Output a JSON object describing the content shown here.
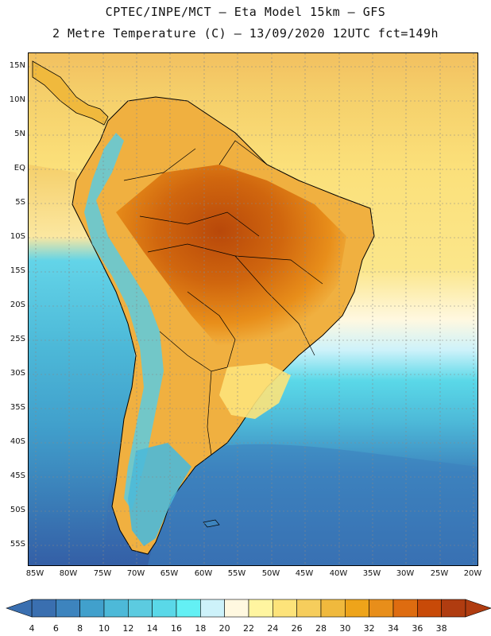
{
  "title": {
    "line1": "CPTEC/INPE/MCT –  Eta Model 15km – GFS",
    "line2": "2 Metre Temperature (C) – 13/09/2020 12UTC fct=149h"
  },
  "map": {
    "region": "South America",
    "variable": "2 Metre Temperature",
    "units": "C",
    "lat_labels": [
      "15N",
      "10N",
      "5N",
      "EQ",
      "5S",
      "10S",
      "15S",
      "20S",
      "25S",
      "30S",
      "35S",
      "40S",
      "45S",
      "50S",
      "55S"
    ],
    "lon_labels": [
      "85W",
      "80W",
      "75W",
      "70W",
      "65W",
      "60W",
      "55W",
      "50W",
      "45W",
      "40W",
      "35W",
      "30W",
      "25W",
      "20W"
    ]
  },
  "colorbar": {
    "ticks": [
      "4",
      "6",
      "8",
      "10",
      "12",
      "14",
      "16",
      "18",
      "20",
      "22",
      "24",
      "26",
      "28",
      "30",
      "32",
      "34",
      "36",
      "38"
    ],
    "colors": [
      "#3a6fb0",
      "#3d84be",
      "#41a0cc",
      "#4db9d8",
      "#5ccbe0",
      "#5ad8e8",
      "#63f0f4",
      "#cdf2fa",
      "#fff8e0",
      "#fff5a0",
      "#fde37a",
      "#f6cd5c",
      "#f0b93d",
      "#eea41a",
      "#e88e1a",
      "#de6c10",
      "#c84a08",
      "#b03c10"
    ],
    "left_arrow_color": "#3a6fb0",
    "right_arrow_color": "#b03c10"
  }
}
